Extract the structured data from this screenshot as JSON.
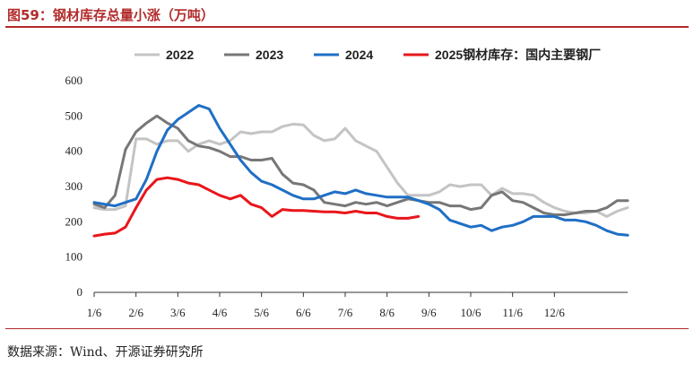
{
  "figure": {
    "title": "图59：钢材库存总量小涨（万吨）",
    "source": "数据来源：Wind、开源证券研究所"
  },
  "chart_data": {
    "type": "line",
    "title": "",
    "xlabel": "",
    "ylabel": "",
    "ylim": [
      0,
      600
    ],
    "y_ticks": [
      0,
      100,
      200,
      300,
      400,
      500,
      600
    ],
    "x_range": [
      1,
      52
    ],
    "x_tick_labels": [
      "1/6",
      "2/6",
      "3/6",
      "4/6",
      "5/6",
      "6/6",
      "7/6",
      "8/6",
      "9/6",
      "10/6",
      "11/6",
      "12/6"
    ],
    "x_tick_positions": [
      1,
      5,
      9,
      13,
      17,
      21,
      25,
      29,
      33,
      37,
      41,
      45
    ],
    "grid": false,
    "legend": "top",
    "series": [
      {
        "name": "2022",
        "color": "#c4c4c4",
        "values": [
          240,
          235,
          235,
          245,
          435,
          435,
          420,
          430,
          430,
          400,
          420,
          430,
          420,
          430,
          455,
          450,
          455,
          455,
          470,
          477,
          475,
          445,
          430,
          435,
          465,
          430,
          415,
          400,
          355,
          310,
          275,
          275,
          275,
          285,
          305,
          300,
          305,
          305,
          275,
          295,
          280,
          280,
          275,
          255,
          240,
          230,
          225,
          225,
          230,
          215,
          230,
          240
        ]
      },
      {
        "name": "2023",
        "color": "#777777",
        "values": [
          250,
          240,
          275,
          405,
          455,
          480,
          500,
          480,
          465,
          430,
          415,
          410,
          400,
          385,
          385,
          375,
          375,
          380,
          335,
          310,
          305,
          290,
          255,
          250,
          245,
          255,
          250,
          255,
          245,
          255,
          265,
          260,
          255,
          255,
          245,
          245,
          235,
          240,
          275,
          285,
          260,
          255,
          240,
          225,
          220,
          220,
          225,
          230,
          230,
          240,
          260,
          260
        ]
      },
      {
        "name": "2024",
        "color": "#1f6fc5",
        "values": [
          255,
          250,
          245,
          255,
          265,
          320,
          400,
          460,
          490,
          510,
          530,
          520,
          465,
          420,
          375,
          340,
          315,
          305,
          290,
          275,
          265,
          265,
          275,
          285,
          280,
          290,
          280,
          275,
          270,
          270,
          270,
          260,
          250,
          235,
          205,
          195,
          185,
          190,
          175,
          185,
          190,
          200,
          215,
          215,
          215,
          205,
          205,
          200,
          190,
          175,
          165,
          162
        ]
      },
      {
        "name": "2025钢材库存：国内主要钢厂",
        "color": "#e8161b",
        "values": [
          160,
          165,
          168,
          185,
          240,
          290,
          320,
          325,
          320,
          310,
          305,
          290,
          275,
          265,
          275,
          250,
          240,
          215,
          235,
          232,
          232,
          230,
          228,
          228,
          225,
          230,
          225,
          225,
          215,
          210,
          210,
          215
        ]
      }
    ]
  }
}
